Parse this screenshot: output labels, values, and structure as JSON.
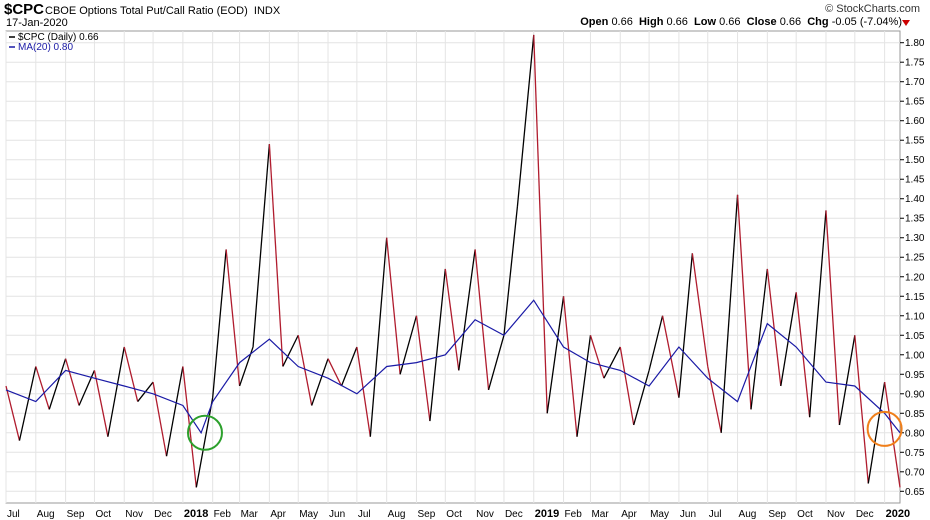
{
  "header": {
    "symbol": "$CPC",
    "description": "CBOE Options Total Put/Call Ratio (EOD)",
    "exchange": "INDX",
    "date": "17-Jan-2020",
    "brand": "© StockCharts.com",
    "open_label": "Open",
    "open": "0.66",
    "high_label": "High",
    "high": "0.66",
    "low_label": "Low",
    "low": "0.66",
    "close_label": "Close",
    "close": "0.66",
    "chg_label": "Chg",
    "chg": "-0.05 (-7.04%)"
  },
  "legend": {
    "series1": "$CPC (Daily) 0.66",
    "series2": "MA(20) 0.80"
  },
  "colors": {
    "price_up": "#000000",
    "price_down": "#b01c2e",
    "ma": "#1a1aa6",
    "grid": "#e4e4e4",
    "circle_green": "#2ca02c",
    "circle_orange": "#f07f1a"
  },
  "chart_data": {
    "type": "line",
    "title": "$CPC CBOE Options Total Put/Call Ratio (EOD)",
    "xlabel": "",
    "ylabel": "",
    "ylim": [
      0.62,
      1.83
    ],
    "y_ticks": [
      "0.65",
      "0.70",
      "0.75",
      "0.80",
      "0.85",
      "0.90",
      "0.95",
      "1.00",
      "1.05",
      "1.10",
      "1.15",
      "1.20",
      "1.25",
      "1.30",
      "1.35",
      "1.40",
      "1.45",
      "1.50",
      "1.55",
      "1.60",
      "1.65",
      "1.70",
      "1.75",
      "1.80"
    ],
    "x_ticks": [
      "Jul",
      "Aug",
      "Sep",
      "Oct",
      "Nov",
      "Dec",
      "2018",
      "Feb",
      "Mar",
      "Apr",
      "May",
      "Jun",
      "Jul",
      "Aug",
      "Sep",
      "Oct",
      "Nov",
      "Dec",
      "2019",
      "Feb",
      "Mar",
      "Apr",
      "May",
      "Jun",
      "Jul",
      "Aug",
      "Sep",
      "Oct",
      "Nov",
      "Dec",
      "2020"
    ],
    "x_ticks_bold": [
      "2018",
      "2019",
      "2020"
    ],
    "x_range": [
      "2017-07-01",
      "2020-01-17"
    ],
    "series": [
      {
        "name": "$CPC (Daily)",
        "x": [
          "2017-07-01",
          "2017-07-15",
          "2017-08-01",
          "2017-08-15",
          "2017-09-01",
          "2017-09-15",
          "2017-10-01",
          "2017-10-15",
          "2017-11-01",
          "2017-11-15",
          "2017-12-01",
          "2017-12-15",
          "2018-01-01",
          "2018-01-15",
          "2018-02-01",
          "2018-02-15",
          "2018-03-01",
          "2018-03-15",
          "2018-04-01",
          "2018-04-15",
          "2018-05-01",
          "2018-05-15",
          "2018-06-01",
          "2018-06-15",
          "2018-07-01",
          "2018-07-15",
          "2018-08-01",
          "2018-08-15",
          "2018-09-01",
          "2018-09-15",
          "2018-10-01",
          "2018-10-15",
          "2018-11-01",
          "2018-11-15",
          "2018-12-01",
          "2018-12-15",
          "2019-01-01",
          "2019-01-15",
          "2019-02-01",
          "2019-02-15",
          "2019-03-01",
          "2019-03-15",
          "2019-04-01",
          "2019-04-15",
          "2019-05-01",
          "2019-05-15",
          "2019-06-01",
          "2019-06-15",
          "2019-07-01",
          "2019-07-15",
          "2019-08-01",
          "2019-08-15",
          "2019-09-01",
          "2019-09-15",
          "2019-10-01",
          "2019-10-15",
          "2019-11-01",
          "2019-11-15",
          "2019-12-01",
          "2019-12-15",
          "2020-01-01",
          "2020-01-17"
        ],
        "values": [
          0.92,
          0.78,
          0.97,
          0.86,
          0.99,
          0.87,
          0.96,
          0.79,
          1.02,
          0.88,
          0.93,
          0.74,
          0.97,
          0.66,
          0.89,
          1.27,
          0.92,
          1.02,
          1.54,
          0.97,
          1.05,
          0.87,
          0.99,
          0.92,
          1.02,
          0.79,
          1.3,
          0.95,
          1.1,
          0.83,
          1.22,
          0.96,
          1.27,
          0.91,
          1.05,
          1.38,
          1.82,
          0.85,
          1.15,
          0.79,
          1.05,
          0.94,
          1.02,
          0.82,
          0.96,
          1.1,
          0.89,
          1.26,
          0.97,
          0.8,
          1.41,
          0.86,
          1.22,
          0.92,
          1.16,
          0.84,
          1.37,
          0.82,
          1.05,
          0.67,
          0.93,
          0.66
        ]
      },
      {
        "name": "MA(20)",
        "x": [
          "2017-07-01",
          "2017-08-01",
          "2017-09-01",
          "2017-10-01",
          "2017-11-01",
          "2017-12-01",
          "2018-01-01",
          "2018-01-20",
          "2018-02-01",
          "2018-03-01",
          "2018-04-01",
          "2018-05-01",
          "2018-06-01",
          "2018-07-01",
          "2018-08-01",
          "2018-09-01",
          "2018-10-01",
          "2018-11-01",
          "2018-12-01",
          "2019-01-01",
          "2019-02-01",
          "2019-03-01",
          "2019-04-01",
          "2019-05-01",
          "2019-06-01",
          "2019-07-01",
          "2019-08-01",
          "2019-09-01",
          "2019-10-01",
          "2019-11-01",
          "2019-12-01",
          "2020-01-01",
          "2020-01-17"
        ],
        "values": [
          0.91,
          0.88,
          0.96,
          0.94,
          0.92,
          0.9,
          0.87,
          0.8,
          0.88,
          0.98,
          1.04,
          0.97,
          0.94,
          0.9,
          0.97,
          0.98,
          1.0,
          1.09,
          1.05,
          1.14,
          1.02,
          0.98,
          0.96,
          0.92,
          1.02,
          0.94,
          0.88,
          1.08,
          1.02,
          0.93,
          0.92,
          0.85,
          0.8
        ]
      }
    ],
    "annotations": [
      {
        "type": "circle",
        "x": "2018-01-24",
        "y": 0.8,
        "color": "green"
      },
      {
        "type": "circle",
        "x": "2020-01-01",
        "y": 0.81,
        "color": "orange"
      }
    ],
    "legend_position": "top-left",
    "grid": true
  }
}
